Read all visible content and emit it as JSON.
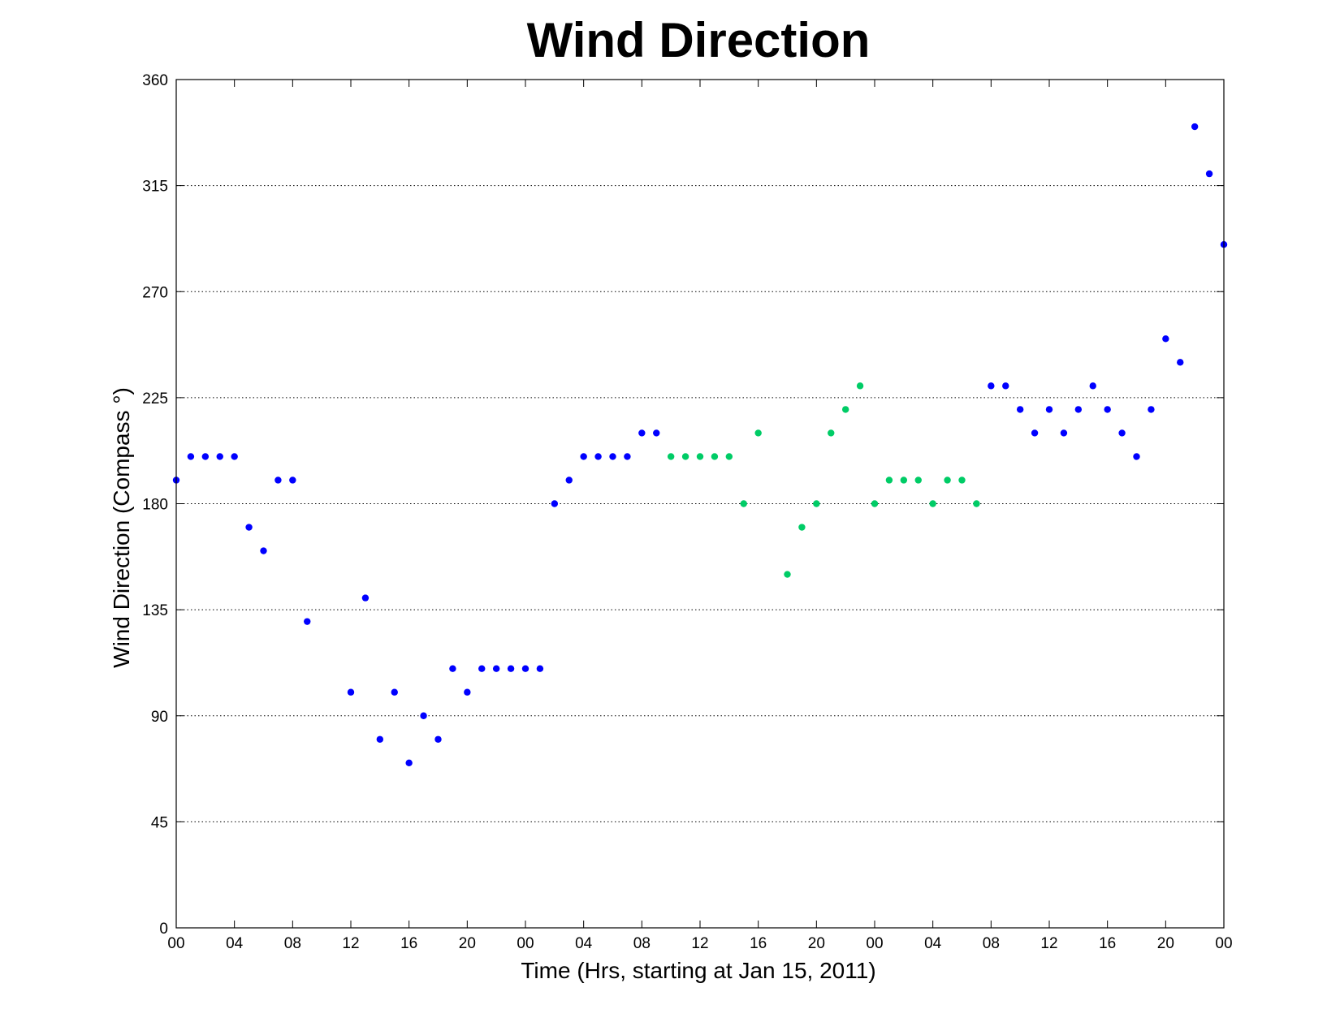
{
  "chart_data": {
    "type": "scatter",
    "title": "Wind Direction",
    "xlabel": "Time (Hrs, starting at Jan 15, 2011)",
    "ylabel": "Wind Direction (Compass  °)",
    "ylim": [
      0,
      360
    ],
    "xlim": [
      0,
      72
    ],
    "yticks": [
      0,
      45,
      90,
      135,
      180,
      225,
      270,
      315,
      360
    ],
    "xticks": [
      0,
      4,
      8,
      12,
      16,
      20,
      24,
      28,
      32,
      36,
      40,
      44,
      48,
      52,
      56,
      60,
      64,
      68,
      72
    ],
    "xtick_labels": [
      "00",
      "04",
      "08",
      "12",
      "16",
      "20",
      "00",
      "04",
      "08",
      "12",
      "16",
      "20",
      "00",
      "04",
      "08",
      "12",
      "16",
      "20",
      "00"
    ],
    "grid": "horizontal dotted",
    "colors": {
      "blue": "#0000ff",
      "green": "#00cc66"
    },
    "series": [
      {
        "color": "#0000ff",
        "points": [
          [
            0,
            190
          ],
          [
            1,
            200
          ],
          [
            2,
            200
          ],
          [
            3,
            200
          ],
          [
            4,
            200
          ],
          [
            5,
            170
          ],
          [
            6,
            160
          ],
          [
            7,
            190
          ],
          [
            8,
            190
          ],
          [
            9,
            130
          ],
          [
            12,
            100
          ],
          [
            13,
            140
          ],
          [
            14,
            80
          ],
          [
            15,
            100
          ],
          [
            16,
            70
          ],
          [
            17,
            90
          ],
          [
            18,
            80
          ],
          [
            19,
            110
          ],
          [
            20,
            100
          ],
          [
            21,
            110
          ],
          [
            22,
            110
          ],
          [
            23,
            110
          ],
          [
            24,
            110
          ],
          [
            25,
            110
          ],
          [
            26,
            180
          ],
          [
            27,
            190
          ],
          [
            28,
            200
          ],
          [
            29,
            200
          ],
          [
            30,
            200
          ],
          [
            31,
            200
          ],
          [
            32,
            210
          ],
          [
            33,
            210
          ],
          [
            56,
            230
          ],
          [
            57,
            230
          ],
          [
            58,
            220
          ],
          [
            59,
            210
          ],
          [
            60,
            220
          ],
          [
            61,
            210
          ],
          [
            62,
            220
          ],
          [
            63,
            230
          ],
          [
            64,
            220
          ],
          [
            65,
            210
          ],
          [
            66,
            200
          ],
          [
            67,
            220
          ],
          [
            68,
            250
          ],
          [
            69,
            240
          ],
          [
            70,
            340
          ],
          [
            71,
            320
          ],
          [
            72,
            290
          ]
        ]
      },
      {
        "color": "#00cc66",
        "points": [
          [
            34,
            200
          ],
          [
            35,
            200
          ],
          [
            36,
            200
          ],
          [
            37,
            200
          ],
          [
            38,
            200
          ],
          [
            39,
            180
          ],
          [
            40,
            210
          ],
          [
            42,
            150
          ],
          [
            43,
            170
          ],
          [
            44,
            180
          ],
          [
            45,
            210
          ],
          [
            46,
            220
          ],
          [
            47,
            230
          ],
          [
            48,
            180
          ],
          [
            49,
            190
          ],
          [
            50,
            190
          ],
          [
            51,
            190
          ],
          [
            52,
            180
          ],
          [
            53,
            190
          ],
          [
            54,
            190
          ],
          [
            55,
            180
          ]
        ]
      }
    ]
  }
}
